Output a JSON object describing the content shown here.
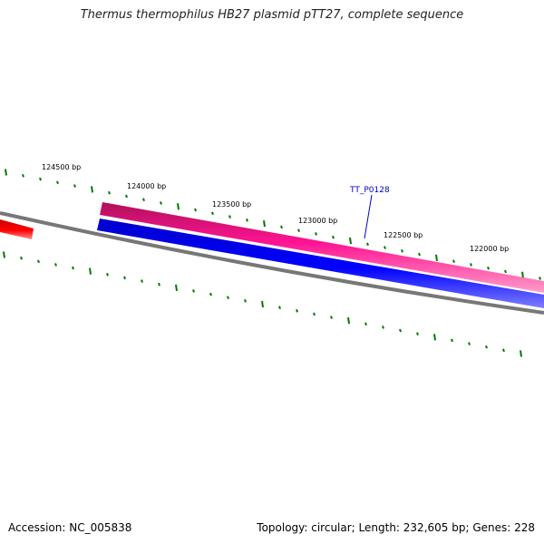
{
  "title": "Thermus thermophilus HB27 plasmid pTT27, complete sequence",
  "footer": {
    "accession": "Accession: NC_005838",
    "summary": "Topology: circular; Length: 232,605 bp; Genes: 228"
  },
  "scale": {
    "tick_labels": [
      "124500 bp",
      "124000 bp",
      "123500 bp",
      "123000 bp",
      "122500 bp",
      "122000 bp"
    ]
  },
  "genes": [
    {
      "label": "TT_P0128",
      "strand": "reverse",
      "color": "#0000ee"
    },
    {
      "label": "",
      "strand": "forward",
      "color": "#ff1493"
    },
    {
      "label": "",
      "strand": "forward",
      "color": "#ff0000"
    }
  ],
  "colors": {
    "backbone": "#777777",
    "ticks": "#007700",
    "forward_gene": "#ff1493",
    "reverse_gene": "#0000ee",
    "partial_gene": "#ff0000",
    "gene_label": "#0000cc"
  }
}
